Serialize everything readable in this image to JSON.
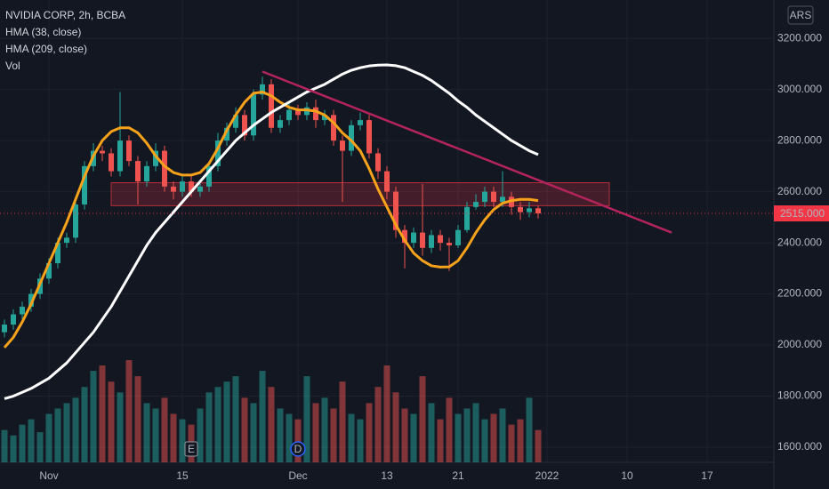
{
  "chart_data": {
    "type": "candlestick",
    "title": "NVIDIA CORP, 2h, BCBA",
    "indicators": [
      "HMA (38, close)",
      "HMA (209, close)",
      "Vol"
    ],
    "currency": "ARS",
    "categories": [
      null,
      null,
      null,
      null,
      null,
      "Nov",
      null,
      null,
      null,
      null,
      null,
      null,
      null,
      null,
      null,
      null,
      null,
      null,
      null,
      null,
      "15",
      null,
      null,
      null,
      null,
      null,
      null,
      null,
      null,
      null,
      null,
      null,
      null,
      "Dec",
      null,
      null,
      null,
      null,
      null,
      null,
      null,
      null,
      null,
      "13",
      null,
      null,
      null,
      null,
      null,
      null,
      null,
      "21",
      null,
      null,
      null,
      null,
      null,
      null,
      null,
      null,
      null,
      "2022",
      null,
      null,
      null,
      null,
      null,
      null,
      null,
      null,
      "10",
      null,
      null,
      null,
      null,
      null,
      null,
      null,
      null,
      "17",
      null,
      null,
      null,
      null,
      null,
      null,
      null
    ],
    "open": [
      2050,
      2080,
      2120,
      2150,
      2200,
      2260,
      2320,
      2400,
      2420,
      2550,
      2700,
      2760,
      2750,
      2680,
      2800,
      2720,
      2640,
      2700,
      2760,
      2620,
      2600,
      2640,
      2600,
      2620,
      2700,
      2800,
      2850,
      2900,
      2820,
      2980,
      3020,
      2850,
      2880,
      2920,
      2900,
      2930,
      2880,
      2900,
      2800,
      2760,
      2860,
      2880,
      2750,
      2680,
      2600,
      2450,
      2400,
      2440,
      2380,
      2430,
      2400,
      2390,
      2450,
      2540,
      2560,
      2600,
      2560,
      2580,
      2540,
      2520,
      2535,
      null,
      null,
      null,
      null,
      null,
      null,
      null,
      null,
      null,
      null,
      null,
      null,
      null,
      null,
      null,
      null,
      null,
      null,
      null,
      null,
      null,
      null,
      null,
      null,
      null,
      null
    ],
    "high": [
      2100,
      2140,
      2170,
      2220,
      2280,
      2340,
      2420,
      2440,
      2570,
      2720,
      2790,
      2780,
      2770,
      2990,
      2820,
      2740,
      2720,
      2790,
      2780,
      2640,
      2660,
      2660,
      2640,
      2720,
      2830,
      2870,
      2930,
      2920,
      3000,
      3050,
      3040,
      2900,
      2950,
      2940,
      2950,
      2960,
      2920,
      2920,
      2820,
      2880,
      2910,
      2900,
      2770,
      2700,
      2620,
      2470,
      2460,
      2630,
      2450,
      2450,
      2420,
      2470,
      2560,
      2590,
      2620,
      2620,
      2680,
      2600,
      2560,
      2560,
      2545,
      null,
      null,
      null,
      null,
      null,
      null,
      null,
      null,
      null,
      null,
      null,
      null,
      null,
      null,
      null,
      null,
      null,
      null,
      null,
      null,
      null,
      null,
      null,
      null,
      null,
      null
    ],
    "low": [
      2030,
      2060,
      2100,
      2130,
      2180,
      2240,
      2300,
      2380,
      2400,
      2530,
      2680,
      2720,
      2660,
      2660,
      2700,
      2550,
      2620,
      2680,
      2600,
      2570,
      2580,
      2580,
      2580,
      2600,
      2680,
      2780,
      2830,
      2800,
      2800,
      2960,
      2830,
      2830,
      2860,
      2880,
      2880,
      2850,
      2860,
      2780,
      2560,
      2740,
      2840,
      2730,
      2650,
      2570,
      2420,
      2300,
      2380,
      2350,
      2360,
      2370,
      2290,
      2380,
      2440,
      2530,
      2540,
      2540,
      2540,
      2510,
      2490,
      2500,
      2495,
      null,
      null,
      null,
      null,
      null,
      null,
      null,
      null,
      null,
      null,
      null,
      null,
      null,
      null,
      null,
      null,
      null,
      null,
      null,
      null,
      null,
      null,
      null,
      null,
      null,
      null
    ],
    "close": [
      2080,
      2120,
      2150,
      2200,
      2260,
      2320,
      2400,
      2420,
      2550,
      2700,
      2760,
      2750,
      2680,
      2800,
      2720,
      2640,
      2700,
      2760,
      2620,
      2600,
      2640,
      2600,
      2620,
      2700,
      2800,
      2850,
      2900,
      2820,
      2980,
      3020,
      2850,
      2880,
      2920,
      2900,
      2930,
      2880,
      2900,
      2800,
      2760,
      2860,
      2880,
      2750,
      2680,
      2600,
      2450,
      2400,
      2440,
      2380,
      2430,
      2400,
      2390,
      2450,
      2540,
      2560,
      2600,
      2560,
      2580,
      2540,
      2520,
      2535,
      2515,
      null,
      null,
      null,
      null,
      null,
      null,
      null,
      null,
      null,
      null,
      null,
      null,
      null,
      null,
      null,
      null,
      null,
      null,
      null,
      null,
      null,
      null,
      null,
      null,
      null,
      null
    ],
    "volume": [
      30,
      25,
      35,
      40,
      28,
      45,
      50,
      55,
      60,
      70,
      85,
      90,
      75,
      65,
      95,
      80,
      55,
      50,
      60,
      45,
      40,
      35,
      50,
      65,
      70,
      75,
      80,
      60,
      55,
      85,
      70,
      50,
      45,
      40,
      80,
      55,
      60,
      50,
      75,
      45,
      40,
      55,
      70,
      90,
      65,
      50,
      45,
      80,
      55,
      40,
      60,
      45,
      50,
      55,
      40,
      45,
      50,
      35,
      40,
      60,
      30,
      null,
      null,
      null,
      null,
      null,
      null,
      null,
      null,
      null,
      null,
      null,
      null,
      null,
      null,
      null,
      null,
      null,
      null,
      null,
      null,
      null,
      null,
      null,
      null,
      null,
      null
    ],
    "up_color": "#26a69a",
    "down_color": "#ef5350",
    "series": [
      {
        "name": "HMA (38, close)",
        "color": "#f7a21b",
        "values": [
          1990,
          2030,
          2090,
          2160,
          2240,
          2320,
          2400,
          2480,
          2570,
          2660,
          2740,
          2800,
          2835,
          2850,
          2850,
          2830,
          2790,
          2740,
          2700,
          2675,
          2665,
          2665,
          2675,
          2710,
          2770,
          2840,
          2900,
          2950,
          2985,
          2990,
          2975,
          2950,
          2930,
          2920,
          2920,
          2915,
          2900,
          2870,
          2830,
          2800,
          2760,
          2690,
          2610,
          2540,
          2470,
          2410,
          2360,
          2330,
          2310,
          2305,
          2306,
          2330,
          2380,
          2440,
          2490,
          2530,
          2555,
          2565,
          2570,
          2570,
          2565,
          null,
          null,
          null,
          null,
          null,
          null,
          null,
          null,
          null,
          null,
          null,
          null,
          null,
          null,
          null,
          null,
          null,
          null,
          null,
          null,
          null,
          null,
          null,
          null,
          null,
          null
        ]
      },
      {
        "name": "HMA (209, close)",
        "color": "#ffffff",
        "values": [
          1790,
          1800,
          1815,
          1830,
          1850,
          1870,
          1900,
          1930,
          1970,
          2010,
          2050,
          2100,
          2150,
          2210,
          2270,
          2330,
          2390,
          2440,
          2480,
          2520,
          2560,
          2600,
          2640,
          2680,
          2720,
          2760,
          2800,
          2830,
          2860,
          2885,
          2910,
          2930,
          2950,
          2970,
          2990,
          3005,
          3020,
          3040,
          3060,
          3075,
          3085,
          3092,
          3095,
          3096,
          3093,
          3085,
          3070,
          3055,
          3035,
          3010,
          2985,
          2955,
          2930,
          2900,
          2875,
          2850,
          2825,
          2800,
          2780,
          2760,
          2745,
          null,
          null,
          null,
          null,
          null,
          null,
          null,
          null,
          null,
          null,
          null,
          null,
          null,
          null,
          null,
          null,
          null,
          null,
          null,
          null,
          null,
          null,
          null,
          null,
          null,
          null
        ]
      }
    ],
    "trendline": {
      "x": [
        29,
        75
      ],
      "y": [
        3070,
        2440
      ],
      "color": "#b3245c"
    },
    "zone": {
      "x": [
        12,
        68
      ],
      "y": [
        2545,
        2635
      ],
      "color": "#f23645"
    },
    "last_price": {
      "value": 2515,
      "label": "2515.000",
      "color": "#f23645"
    },
    "events": [
      {
        "x": 21,
        "label": "E"
      },
      {
        "x": 33,
        "label": "D"
      }
    ],
    "ylim": [
      1541,
      3350
    ],
    "yticks": [
      {
        "value": 1600,
        "label": "1600.000"
      },
      {
        "value": 1800,
        "label": "1800.000"
      },
      {
        "value": 2000,
        "label": "2000.000"
      },
      {
        "value": 2200,
        "label": "2200.000"
      },
      {
        "value": 2400,
        "label": "2400.000"
      },
      {
        "value": 2600,
        "label": "2600.000"
      },
      {
        "value": 2800,
        "label": "2800.000"
      },
      {
        "value": 3000,
        "label": "3000.000"
      },
      {
        "value": 3200,
        "label": "3200.000"
      }
    ],
    "grid": true
  }
}
